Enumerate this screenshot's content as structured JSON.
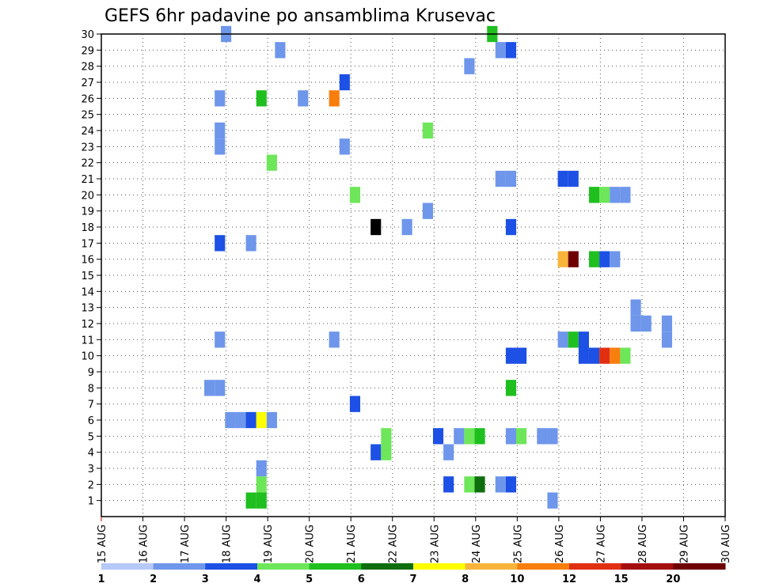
{
  "chart_data": {
    "type": "heatmap",
    "title": "GEFS 6hr padavine po ansamblima Krusevac",
    "xlabel": "",
    "ylabel": "",
    "x_ticks": [
      "15 AUG",
      "16 AUG",
      "17 AUG",
      "18 AUG",
      "19 AUG",
      "20 AUG",
      "21 AUG",
      "22 AUG",
      "23 AUG",
      "24 AUG",
      "25 AUG",
      "26 AUG",
      "27 AUG",
      "28 AUG",
      "29 AUG",
      "30 AUG"
    ],
    "xlim_days": [
      15,
      30
    ],
    "y_ticks": [
      1,
      2,
      3,
      4,
      5,
      6,
      7,
      8,
      9,
      10,
      11,
      12,
      13,
      14,
      15,
      16,
      17,
      18,
      19,
      20,
      21,
      22,
      23,
      24,
      25,
      26,
      27,
      28,
      29,
      30
    ],
    "ylim": [
      0,
      30
    ],
    "grid": true,
    "levels": [
      "1",
      "2",
      "3",
      "4",
      "5",
      "6",
      "7",
      "8",
      "10",
      "12",
      "15",
      "20"
    ],
    "colors": [
      "#b6c8f8",
      "#6e96ea",
      "#1d50e4",
      "#6ee65a",
      "#1fbf1f",
      "#0e6e0e",
      "#ffff00",
      "#f8b43a",
      "#f87e0e",
      "#e12f12",
      "#a50e0e",
      "#6e0000"
    ],
    "cells": [
      [
        18.0,
        30,
        1
      ],
      [
        24.4,
        30,
        4
      ],
      [
        19.3,
        29,
        1
      ],
      [
        24.6,
        29,
        1
      ],
      [
        24.85,
        29,
        2
      ],
      [
        23.85,
        28,
        1
      ],
      [
        20.85,
        27,
        2
      ],
      [
        17.85,
        26,
        1
      ],
      [
        18.85,
        26,
        4
      ],
      [
        19.85,
        26,
        1
      ],
      [
        20.6,
        26,
        8
      ],
      [
        17.85,
        24,
        1
      ],
      [
        22.85,
        24,
        3
      ],
      [
        17.85,
        23,
        1
      ],
      [
        20.85,
        23,
        1
      ],
      [
        19.1,
        22,
        3
      ],
      [
        24.6,
        21,
        1
      ],
      [
        24.85,
        21,
        1
      ],
      [
        26.1,
        21,
        2
      ],
      [
        26.35,
        21,
        2
      ],
      [
        21.1,
        20,
        3
      ],
      [
        26.85,
        20,
        4
      ],
      [
        27.1,
        20,
        3
      ],
      [
        27.35,
        20,
        1
      ],
      [
        27.6,
        20,
        1
      ],
      [
        22.85,
        19,
        1
      ],
      [
        21.6,
        18,
        12
      ],
      [
        22.35,
        18,
        1
      ],
      [
        24.85,
        18,
        2
      ],
      [
        17.85,
        17,
        2
      ],
      [
        18.6,
        17,
        1
      ],
      [
        26.1,
        16,
        7
      ],
      [
        26.35,
        16,
        11
      ],
      [
        26.85,
        16,
        4
      ],
      [
        27.1,
        16,
        2
      ],
      [
        27.35,
        16,
        1
      ],
      [
        27.85,
        13,
        1
      ],
      [
        27.85,
        12,
        1
      ],
      [
        28.1,
        12,
        1
      ],
      [
        28.6,
        12,
        1
      ],
      [
        17.85,
        11,
        1
      ],
      [
        20.6,
        11,
        1
      ],
      [
        26.1,
        11,
        1
      ],
      [
        26.35,
        11,
        4
      ],
      [
        26.6,
        11,
        2
      ],
      [
        28.6,
        11,
        1
      ],
      [
        24.85,
        10,
        2
      ],
      [
        25.1,
        10,
        2
      ],
      [
        26.6,
        10,
        2
      ],
      [
        26.85,
        10,
        2
      ],
      [
        27.1,
        10,
        9
      ],
      [
        27.35,
        10,
        8
      ],
      [
        27.6,
        10,
        3
      ],
      [
        17.6,
        8,
        1
      ],
      [
        17.85,
        8,
        1
      ],
      [
        24.85,
        8,
        4
      ],
      [
        21.1,
        7,
        2
      ],
      [
        18.1,
        6,
        1
      ],
      [
        18.35,
        6,
        1
      ],
      [
        18.6,
        6,
        2
      ],
      [
        18.85,
        6,
        6
      ],
      [
        19.1,
        6,
        1
      ],
      [
        21.85,
        5,
        3
      ],
      [
        23.1,
        5,
        2
      ],
      [
        23.6,
        5,
        1
      ],
      [
        23.85,
        5,
        3
      ],
      [
        24.1,
        5,
        4
      ],
      [
        24.85,
        5,
        1
      ],
      [
        25.1,
        5,
        3
      ],
      [
        25.6,
        5,
        1
      ],
      [
        25.85,
        5,
        1
      ],
      [
        21.6,
        4,
        2
      ],
      [
        21.85,
        4,
        3
      ],
      [
        23.35,
        4,
        1
      ],
      [
        18.85,
        3,
        1
      ],
      [
        18.85,
        2,
        3
      ],
      [
        23.35,
        2,
        2
      ],
      [
        23.85,
        2,
        3
      ],
      [
        24.1,
        2,
        5
      ],
      [
        24.6,
        2,
        1
      ],
      [
        24.85,
        2,
        2
      ],
      [
        18.6,
        1,
        4
      ],
      [
        18.85,
        1,
        4
      ],
      [
        25.85,
        1,
        1
      ]
    ]
  }
}
